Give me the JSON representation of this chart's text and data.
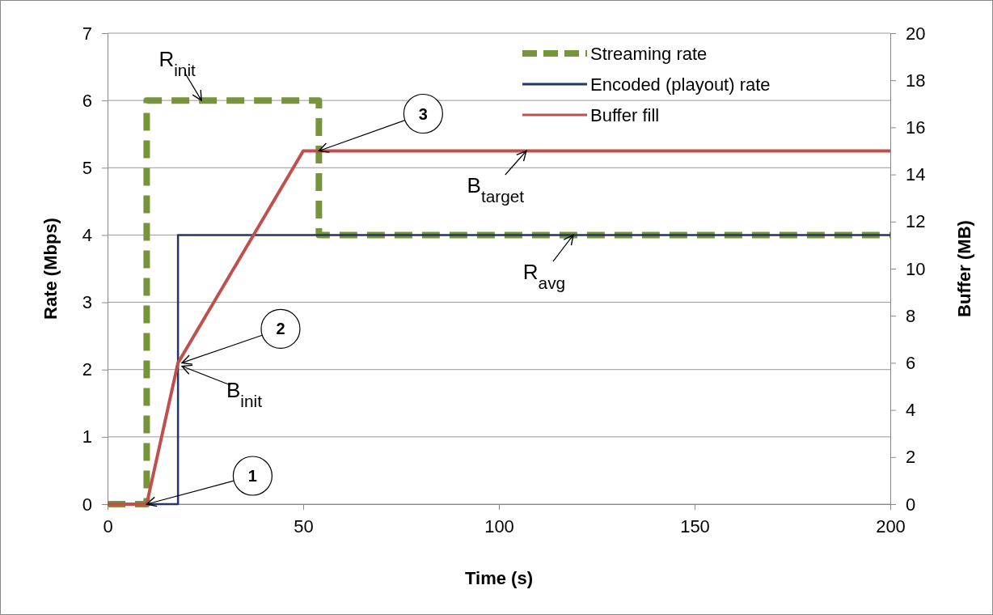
{
  "chart_data": {
    "type": "line",
    "xlabel": "Time (s)",
    "ylabel": "Rate (Mbps)",
    "y2label": "Buffer (MB)",
    "xlim": [
      0,
      200
    ],
    "xticks": [
      0,
      50,
      100,
      150,
      200
    ],
    "ylim": [
      0,
      7
    ],
    "yticks": [
      0,
      1,
      2,
      3,
      4,
      5,
      6,
      7
    ],
    "y2lim": [
      0,
      20
    ],
    "y2ticks": [
      0,
      2,
      4,
      6,
      8,
      10,
      12,
      14,
      16,
      18,
      20
    ],
    "grid": "y",
    "legend": "top right",
    "series": [
      {
        "name": "Streaming rate",
        "type": "step",
        "color": "#77933c",
        "line_style": "dashed",
        "x": [
          0,
          10,
          54,
          200
        ],
        "values": [
          0,
          6,
          4,
          4
        ]
      },
      {
        "name": "Encoded (playout) rate",
        "type": "step",
        "color": "#1f3864",
        "line_style": "solid",
        "x": [
          0,
          18,
          200
        ],
        "values": [
          0,
          4,
          4
        ]
      },
      {
        "name": "Buffer fill",
        "axis": "y2",
        "color": "#c0504d",
        "line_style": "solid",
        "x": [
          0,
          10,
          18,
          50,
          200
        ],
        "values": [
          0,
          0,
          6,
          15,
          15
        ]
      }
    ],
    "annotations": [
      {
        "text": "R$_{init}$",
        "x": 24,
        "y": 6.0
      },
      {
        "text": "B$_{init}$",
        "x": 19,
        "y": 2.05
      },
      {
        "text": "B$_{target}$",
        "x": 107,
        "y": 5.25
      },
      {
        "text": "R$_{avg}$",
        "x": 119,
        "y": 4.0
      },
      {
        "text": "1",
        "x": 10,
        "y": 0
      },
      {
        "text": "2",
        "x": 19,
        "y": 2.1
      },
      {
        "text": "3",
        "x": 54,
        "y": 5.25
      }
    ]
  }
}
